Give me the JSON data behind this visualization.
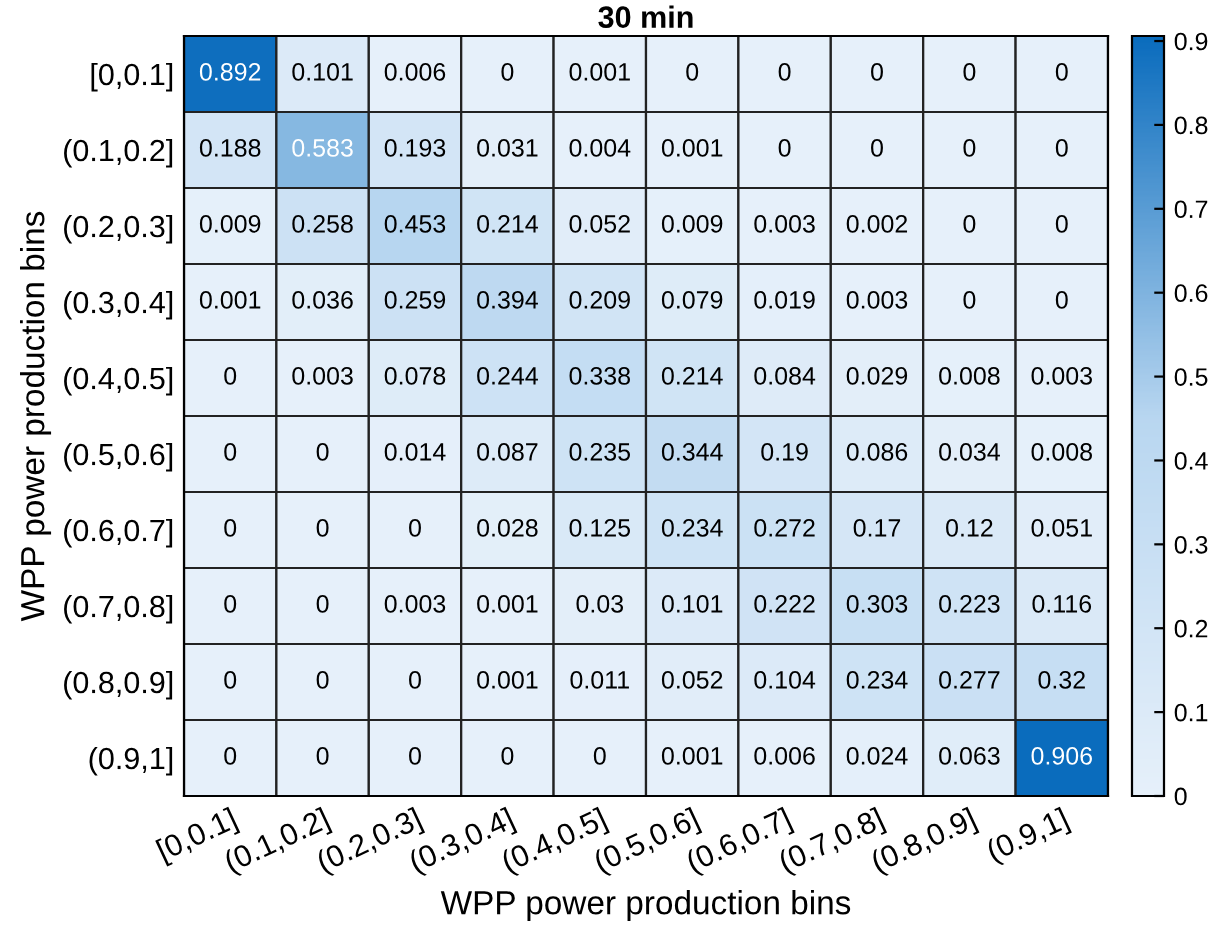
{
  "chart_data": {
    "type": "heatmap",
    "title": "30 min",
    "xlabel": "WPP power production bins",
    "ylabel": "WPP power production bins",
    "categories": [
      "[0,0.1]",
      "(0.1,0.2]",
      "(0.2,0.3]",
      "(0.3,0.4]",
      "(0.4,0.5]",
      "(0.5,0.6]",
      "(0.6,0.7]",
      "(0.7,0.8]",
      "(0.8,0.9]",
      "(0.9,1]"
    ],
    "y_categories": [
      "[0,0.1]",
      "(0.1,0.2]",
      "(0.2,0.3]",
      "(0.3,0.4]",
      "(0.4,0.5]",
      "(0.5,0.6]",
      "(0.6,0.7]",
      "(0.7,0.8]",
      "(0.8,0.9]",
      "(0.9,1]"
    ],
    "cells": [
      [
        0.892,
        0.101,
        0.006,
        0,
        0.001,
        0,
        0,
        0,
        0,
        0
      ],
      [
        0.188,
        0.583,
        0.193,
        0.031,
        0.004,
        0.001,
        0,
        0,
        0,
        0
      ],
      [
        0.009,
        0.258,
        0.453,
        0.214,
        0.052,
        0.009,
        0.003,
        0.002,
        0,
        0
      ],
      [
        0.001,
        0.036,
        0.259,
        0.394,
        0.209,
        0.079,
        0.019,
        0.003,
        0,
        0
      ],
      [
        0,
        0.003,
        0.078,
        0.244,
        0.338,
        0.214,
        0.084,
        0.029,
        0.008,
        0.003
      ],
      [
        0,
        0,
        0.014,
        0.087,
        0.235,
        0.344,
        0.19,
        0.086,
        0.034,
        0.008
      ],
      [
        0,
        0,
        0,
        0.028,
        0.125,
        0.234,
        0.272,
        0.17,
        0.12,
        0.051
      ],
      [
        0,
        0,
        0.003,
        0.001,
        0.03,
        0.101,
        0.222,
        0.303,
        0.223,
        0.116
      ],
      [
        0,
        0,
        0,
        0.001,
        0.011,
        0.052,
        0.104,
        0.234,
        0.277,
        0.32
      ],
      [
        0,
        0,
        0,
        0,
        0,
        0.001,
        0.006,
        0.024,
        0.063,
        0.906
      ]
    ],
    "data_labels": true,
    "clim": [
      0,
      0.906
    ],
    "cticks": [
      0,
      0.1,
      0.2,
      0.3,
      0.4,
      0.5,
      0.6,
      0.7,
      0.8,
      0.9
    ]
  }
}
